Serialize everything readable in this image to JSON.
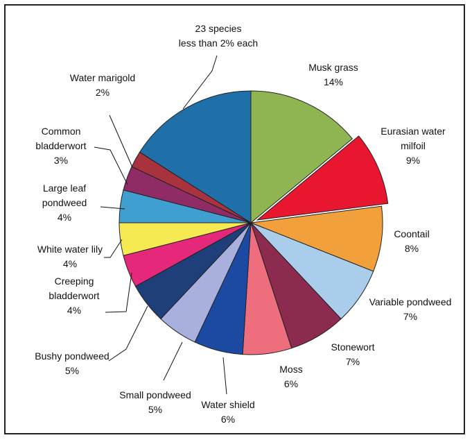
{
  "chart_data": {
    "type": "pie",
    "title": "",
    "slices": [
      {
        "label": "Musk grass",
        "pct": "14%",
        "value": 14,
        "color": "#8fb552"
      },
      {
        "label": "Eurasian water milfoil",
        "pct": "9%",
        "value": 9,
        "color": "#e8162f",
        "exploded": true
      },
      {
        "label": "Coontail",
        "pct": "8%",
        "value": 8,
        "color": "#f2a03c"
      },
      {
        "label": "Variable pondweed",
        "pct": "7%",
        "value": 7,
        "color": "#a9cdea"
      },
      {
        "label": "Stonewort",
        "pct": "7%",
        "value": 7,
        "color": "#8c2a4f"
      },
      {
        "label": "Moss",
        "pct": "6%",
        "value": 6,
        "color": "#ef6e7d"
      },
      {
        "label": "Water shield",
        "pct": "6%",
        "value": 6,
        "color": "#1c49a2"
      },
      {
        "label": "Small pondweed",
        "pct": "5%",
        "value": 5,
        "color": "#aab0dd"
      },
      {
        "label": "Bushy pondweed",
        "pct": "5%",
        "value": 5,
        "color": "#1f3f7a"
      },
      {
        "label": "Creeping bladderwort",
        "pct": "4%",
        "value": 4,
        "color": "#e6287a"
      },
      {
        "label": "White water lily",
        "pct": "4%",
        "value": 4,
        "color": "#f5ea52"
      },
      {
        "label": "Large leaf pondweed",
        "pct": "4%",
        "value": 4,
        "color": "#3e9fd0"
      },
      {
        "label": "Common bladderwort",
        "pct": "3%",
        "value": 3,
        "color": "#8f2c66"
      },
      {
        "label": "Water marigold",
        "pct": "2%",
        "value": 2,
        "color": "#a8323e"
      },
      {
        "label": "23 species less than 2% each",
        "pct": "",
        "value": 16,
        "color": "#1f6fa8"
      }
    ],
    "labels": [
      {
        "lines": [
          "Musk grass",
          "14%"
        ]
      },
      {
        "lines": [
          "Eurasian water",
          "milfoil",
          "9%"
        ]
      },
      {
        "lines": [
          "Coontail",
          "8%"
        ]
      },
      {
        "lines": [
          "Variable pondweed",
          "7%"
        ]
      },
      {
        "lines": [
          "Stonewort",
          "7%"
        ]
      },
      {
        "lines": [
          "Moss",
          "6%"
        ]
      },
      {
        "lines": [
          "Water shield",
          "6%"
        ]
      },
      {
        "lines": [
          "Small pondweed",
          "5%"
        ]
      },
      {
        "lines": [
          "Bushy pondweed",
          "5%"
        ]
      },
      {
        "lines": [
          "Creeping",
          "bladderwort",
          "4%"
        ]
      },
      {
        "lines": [
          "White water lily",
          "4%"
        ]
      },
      {
        "lines": [
          "Large leaf",
          "pondweed",
          "4%"
        ]
      },
      {
        "lines": [
          "Common",
          "bladderwort",
          "3%"
        ]
      },
      {
        "lines": [
          "Water marigold",
          "2%"
        ]
      },
      {
        "lines": [
          "23 species",
          "less than 2% each"
        ]
      }
    ]
  }
}
